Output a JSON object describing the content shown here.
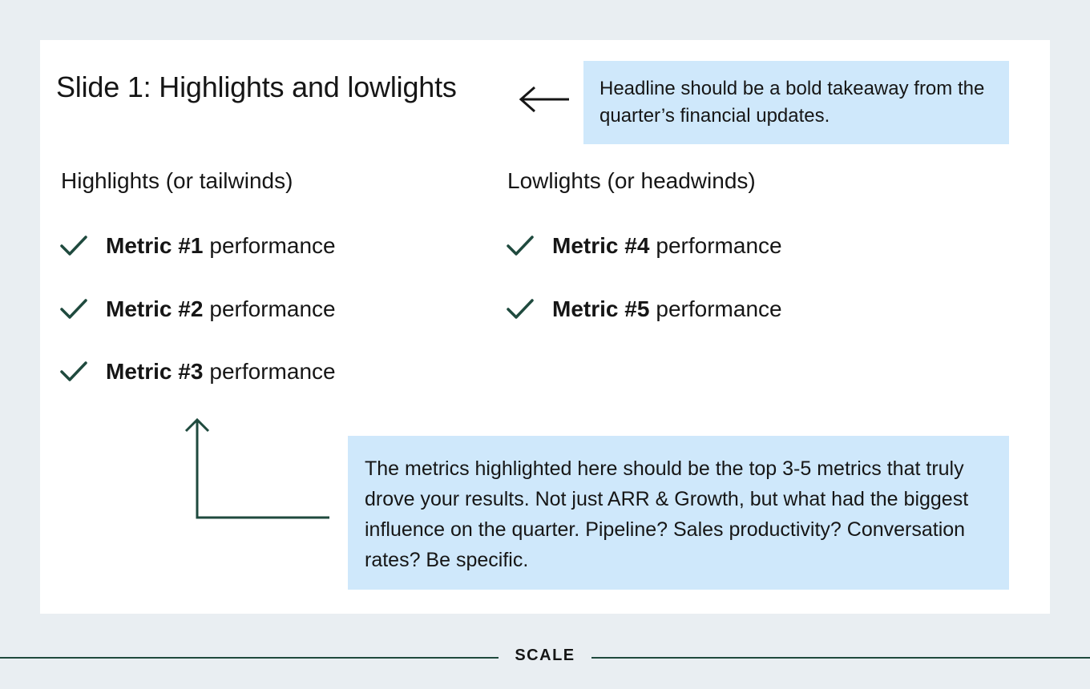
{
  "slide": {
    "title": "Slide 1: Highlights and lowlights"
  },
  "callouts": {
    "headline": "Headline should be a bold takeaway from the quarter’s financial updates.",
    "metrics": "The metrics highlighted here should be the top 3-5 metrics that truly drove your results. Not just ARR & Growth, but what had the biggest influence on the quarter. Pipeline? Sales productivity? Conversation rates? Be specific."
  },
  "highlights": {
    "heading": "Highlights (or tailwinds)",
    "items": [
      {
        "name": "Metric #1",
        "suffix": "performance"
      },
      {
        "name": "Metric #2",
        "suffix": "performance"
      },
      {
        "name": "Metric #3",
        "suffix": "performance"
      }
    ]
  },
  "lowlights": {
    "heading": "Lowlights (or headwinds)",
    "items": [
      {
        "name": "Metric #4",
        "suffix": "performance"
      },
      {
        "name": "Metric #5",
        "suffix": "performance"
      }
    ]
  },
  "icons": {
    "check": "check-icon",
    "arrow_left": "arrow-left-icon",
    "arrow_up": "arrow-up-icon"
  },
  "colors": {
    "background": "#e9eef2",
    "card": "#ffffff",
    "callout": "#cfe8fb",
    "accent": "#1f4a3e",
    "text": "#161616"
  },
  "footer": {
    "brand": "SCALE"
  }
}
